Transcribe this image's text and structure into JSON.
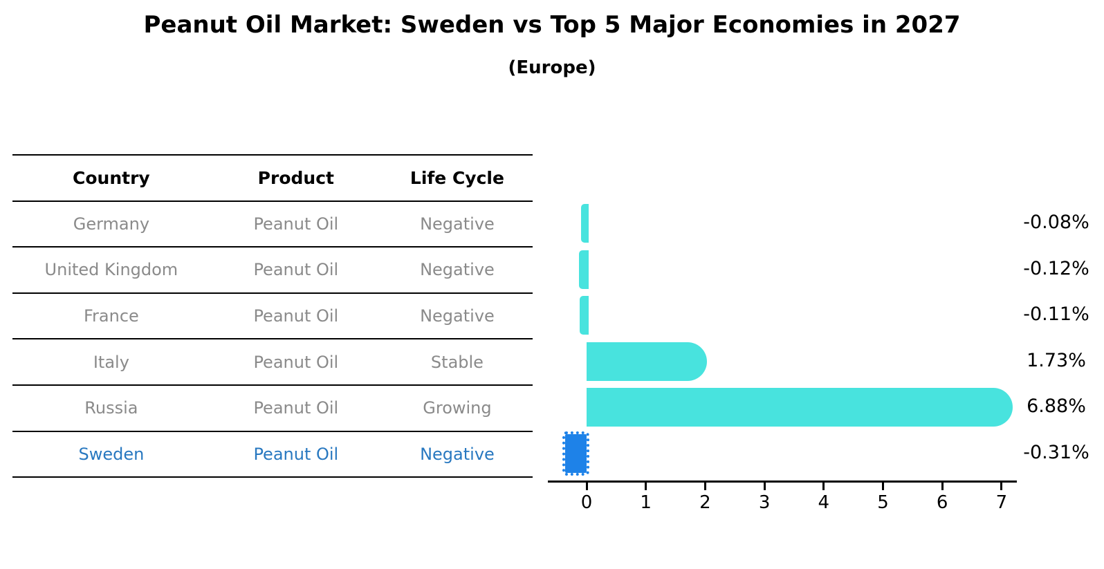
{
  "title": "Peanut Oil Market: Sweden vs Top 5 Major Economies in 2027",
  "subtitle": "(Europe)",
  "table": {
    "headers": [
      "Country",
      "Product",
      "Life Cycle"
    ],
    "rows": [
      {
        "country": "Germany",
        "product": "Peanut Oil",
        "life_cycle": "Negative",
        "highlight": false
      },
      {
        "country": "United Kingdom",
        "product": "Peanut Oil",
        "life_cycle": "Negative",
        "highlight": false
      },
      {
        "country": "France",
        "product": "Peanut Oil",
        "life_cycle": "Negative",
        "highlight": false
      },
      {
        "country": "Italy",
        "product": "Peanut Oil",
        "life_cycle": "Stable",
        "highlight": false
      },
      {
        "country": "Russia",
        "product": "Peanut Oil",
        "life_cycle": "Growing",
        "highlight": false
      },
      {
        "country": "Sweden",
        "product": "Peanut Oil",
        "life_cycle": "Negative",
        "highlight": true
      }
    ]
  },
  "chart_data": {
    "type": "bar",
    "orientation": "horizontal",
    "title": "Peanut Oil Market: Sweden vs Top 5 Major Economies in 2027",
    "subtitle": "(Europe)",
    "categories": [
      "Germany",
      "United Kingdom",
      "France",
      "Italy",
      "Russia",
      "Sweden"
    ],
    "values": [
      -0.08,
      -0.12,
      -0.11,
      1.73,
      6.88,
      -0.31
    ],
    "value_labels": [
      "-0.08%",
      "-0.12%",
      "-0.11%",
      "1.73%",
      "6.88%",
      "-0.31%"
    ],
    "x_ticks": [
      "0",
      "1",
      "2",
      "3",
      "4",
      "5",
      "6",
      "7"
    ],
    "xlim": [
      -0.65,
      7.25
    ],
    "grid": false,
    "legend": "none",
    "bar_color": "#48E3DE",
    "highlight_color": "#1E82E8",
    "highlight_index": 5,
    "unit": "%"
  },
  "colors": {
    "bar_cyan": "#48E3DE",
    "bar_blue": "#1E82E8",
    "highlight_text": "#2878C0",
    "row_text": "#8a8a8a",
    "axis": "#000000"
  }
}
